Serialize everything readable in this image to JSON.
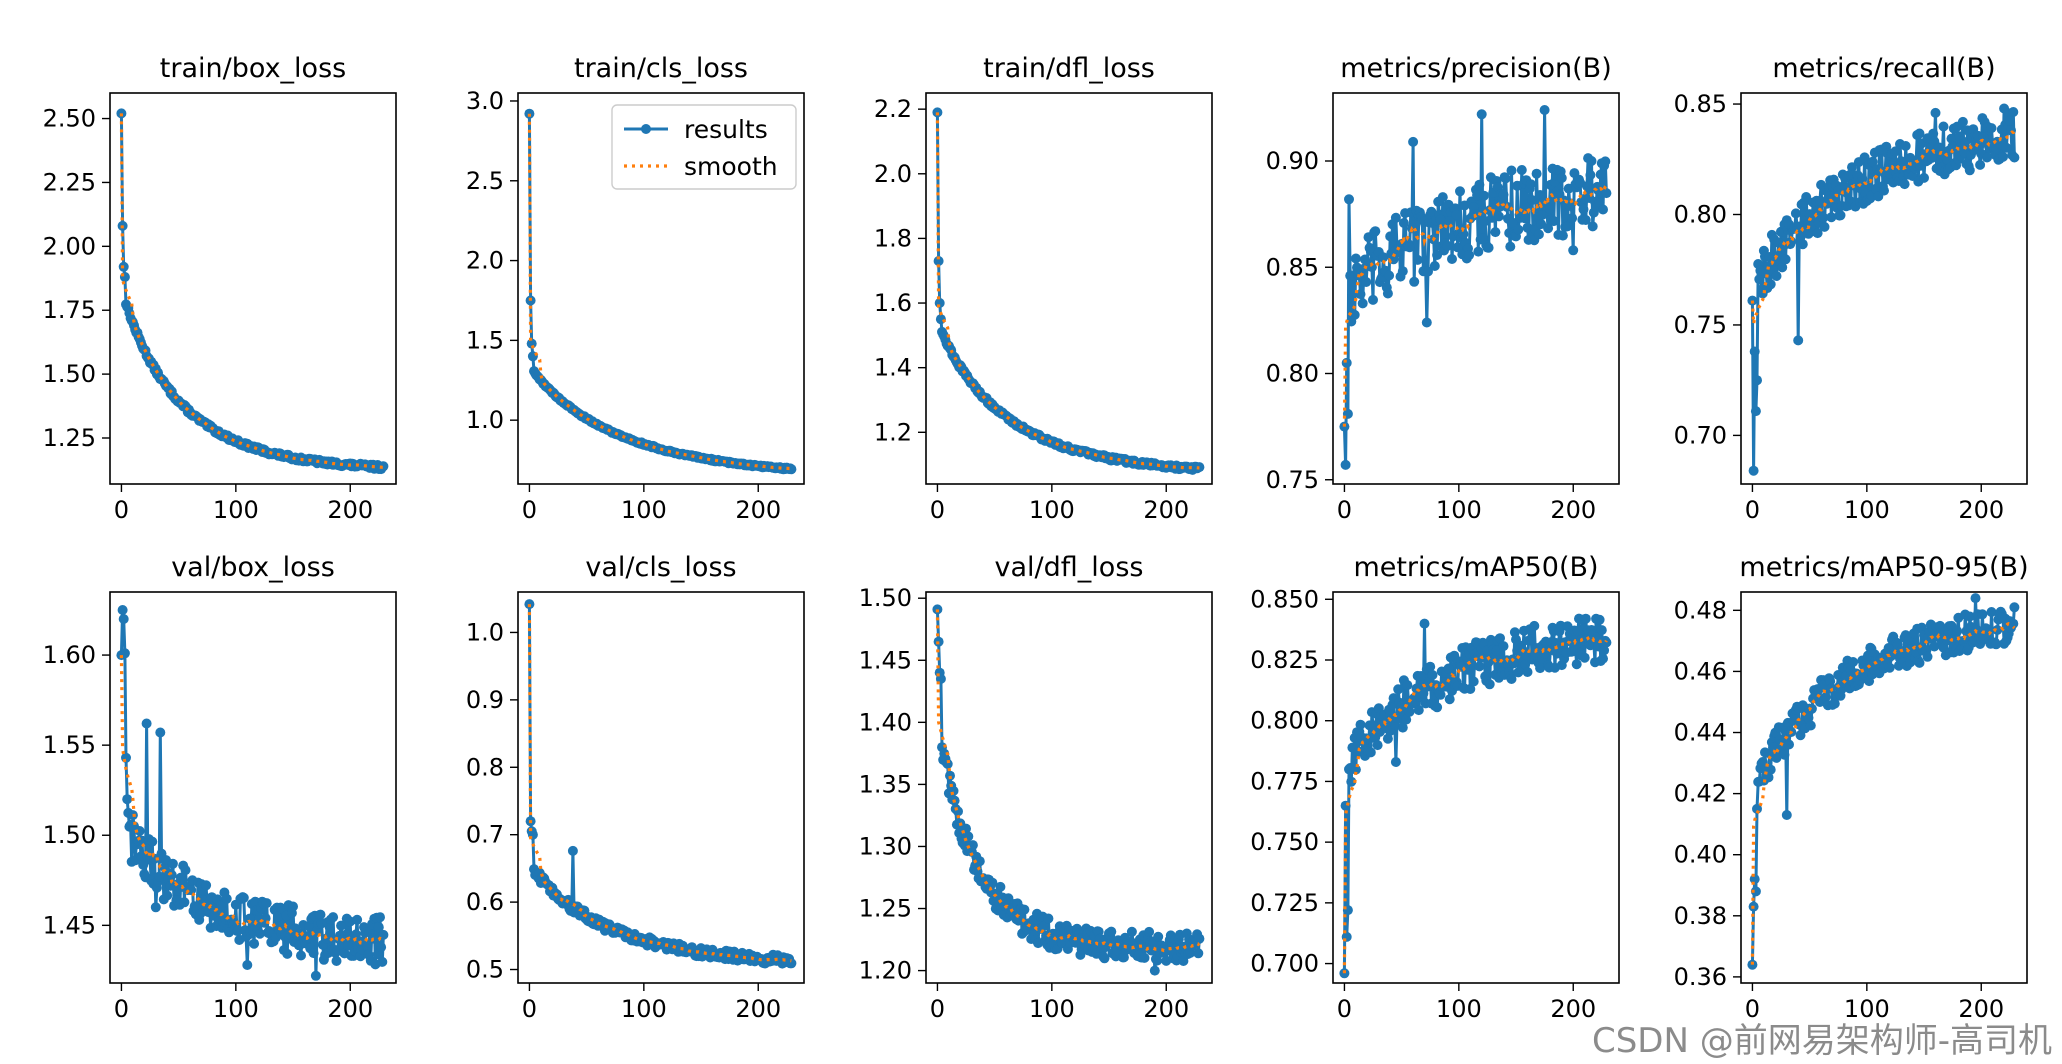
{
  "colors": {
    "results": "#1f77b4",
    "smooth": "#ff7f0e",
    "watermark": "#808080"
  },
  "legend": {
    "results_label": "results",
    "smooth_label": "smooth",
    "placement": "upper-right of train/cls_loss"
  },
  "watermark": "CSDN @前网易架构师-高司机",
  "chart_data": [
    {
      "type": "line",
      "title": "train/box_loss",
      "xlim": [
        -10,
        240
      ],
      "ylim": [
        1.07,
        2.6
      ],
      "xticks": [
        0,
        100,
        200
      ],
      "yticks": [
        1.25,
        1.5,
        1.75,
        2.0,
        2.25,
        2.5
      ],
      "ytick_decimals": 2,
      "model": {
        "start": 2.52,
        "first": [
          2.08,
          1.92,
          1.88
        ],
        "a": 1.85,
        "b": 1.12,
        "k": 0.72,
        "noise": 0.008,
        "spikes": []
      }
    },
    {
      "type": "line",
      "title": "train/cls_loss",
      "xlim": [
        -10,
        240
      ],
      "ylim": [
        0.6,
        3.05
      ],
      "xticks": [
        0,
        100,
        200
      ],
      "yticks": [
        1.0,
        1.5,
        2.0,
        2.5,
        3.0
      ],
      "ytick_decimals": 1,
      "legend": true,
      "model": {
        "start": 2.92,
        "first": [
          1.75,
          1.48,
          1.4
        ],
        "a": 1.35,
        "b": 0.64,
        "k": 0.48,
        "noise": 0.006,
        "spikes": []
      }
    },
    {
      "type": "line",
      "title": "train/dfl_loss",
      "xlim": [
        -10,
        240
      ],
      "ylim": [
        1.04,
        2.25
      ],
      "xticks": [
        0,
        100,
        200
      ],
      "yticks": [
        1.2,
        1.4,
        1.6,
        1.8,
        2.0,
        2.2
      ],
      "ytick_decimals": 1,
      "model": {
        "start": 2.19,
        "first": [
          1.73,
          1.6,
          1.55
        ],
        "a": 1.55,
        "b": 1.07,
        "k": 0.62,
        "noise": 0.006,
        "spikes": []
      }
    },
    {
      "type": "line",
      "title": "metrics/precision(B)",
      "xlim": [
        -10,
        240
      ],
      "ylim": [
        0.748,
        0.932
      ],
      "xticks": [
        0,
        100,
        200
      ],
      "yticks": [
        0.75,
        0.8,
        0.85,
        0.9
      ],
      "ytick_decimals": 2,
      "model": {
        "start": 0.775,
        "first": [
          0.757,
          0.805,
          0.781,
          0.882
        ],
        "a": 0.835,
        "b": 0.895,
        "k": 0.35,
        "noise": 0.018,
        "spikes": [
          [
            60,
            0.909
          ],
          [
            72,
            0.824
          ],
          [
            90,
            0.86
          ],
          [
            120,
            0.922
          ],
          [
            175,
            0.924
          ],
          [
            200,
            0.858
          ]
        ]
      }
    },
    {
      "type": "line",
      "title": "metrics/recall(B)",
      "xlim": [
        -10,
        240
      ],
      "ylim": [
        0.678,
        0.855
      ],
      "xticks": [
        0,
        100,
        200
      ],
      "yticks": [
        0.7,
        0.75,
        0.8,
        0.85
      ],
      "ytick_decimals": 2,
      "model": {
        "start": 0.761,
        "first": [
          0.684,
          0.738,
          0.711,
          0.725
        ],
        "a": 0.765,
        "b": 0.845,
        "k": 0.4,
        "noise": 0.011,
        "spikes": [
          [
            40,
            0.743
          ],
          [
            160,
            0.846
          ],
          [
            190,
            0.82
          ],
          [
            220,
            0.848
          ]
        ]
      }
    },
    {
      "type": "line",
      "title": "val/box_loss",
      "xlim": [
        -10,
        240
      ],
      "ylim": [
        1.418,
        1.635
      ],
      "xticks": [
        0,
        100,
        200
      ],
      "yticks": [
        1.45,
        1.5,
        1.55,
        1.6
      ],
      "ytick_decimals": 2,
      "model": {
        "start": 1.6,
        "first": [
          1.625,
          1.62,
          1.601,
          1.543,
          1.52
        ],
        "a": 1.51,
        "b": 1.437,
        "k": 0.55,
        "noise": 0.014,
        "spikes": [
          [
            22,
            1.562
          ],
          [
            30,
            1.46
          ],
          [
            34,
            1.557
          ],
          [
            110,
            1.428
          ],
          [
            170,
            1.422
          ]
        ]
      }
    },
    {
      "type": "line",
      "title": "val/cls_loss",
      "xlim": [
        -10,
        240
      ],
      "ylim": [
        0.48,
        1.06
      ],
      "xticks": [
        0,
        100,
        200
      ],
      "yticks": [
        0.5,
        0.6,
        0.7,
        0.8,
        0.9,
        1.0
      ],
      "ytick_decimals": 1,
      "model": {
        "start": 1.042,
        "first": [
          0.72,
          0.705,
          0.7
        ],
        "a": 0.66,
        "b": 0.505,
        "k": 0.55,
        "noise": 0.007,
        "spikes": [
          [
            38,
            0.676
          ]
        ]
      }
    },
    {
      "type": "line",
      "title": "val/dfl_loss",
      "xlim": [
        -10,
        240
      ],
      "ylim": [
        1.19,
        1.505
      ],
      "xticks": [
        0,
        100,
        200
      ],
      "yticks": [
        1.2,
        1.25,
        1.3,
        1.35,
        1.4,
        1.45,
        1.5
      ],
      "ytick_decimals": 2,
      "model": {
        "start": 1.491,
        "first": [
          1.465,
          1.44,
          1.435,
          1.38
        ],
        "a": 1.41,
        "b": 1.218,
        "k": 1.1,
        "noise": 0.012,
        "spikes": [
          [
            78,
            1.234
          ],
          [
            190,
            1.2
          ]
        ]
      }
    },
    {
      "type": "line",
      "title": "metrics/mAP50(B)",
      "xlim": [
        -10,
        240
      ],
      "ylim": [
        0.692,
        0.853
      ],
      "xticks": [
        0,
        100,
        200
      ],
      "yticks": [
        0.7,
        0.725,
        0.75,
        0.775,
        0.8,
        0.825,
        0.85
      ],
      "ytick_decimals": 3,
      "model": {
        "start": 0.696,
        "first": [
          0.765,
          0.711,
          0.722,
          0.78
        ],
        "a": 0.78,
        "b": 0.842,
        "k": 0.4,
        "noise": 0.01,
        "spikes": [
          [
            45,
            0.783
          ],
          [
            70,
            0.84
          ]
        ]
      }
    },
    {
      "type": "line",
      "title": "metrics/mAP50-95(B)",
      "xlim": [
        -10,
        240
      ],
      "ylim": [
        0.358,
        0.486
      ],
      "xticks": [
        0,
        100,
        200
      ],
      "yticks": [
        0.36,
        0.38,
        0.4,
        0.42,
        0.44,
        0.46,
        0.48
      ],
      "ytick_decimals": 2,
      "model": {
        "start": 0.364,
        "first": [
          0.383,
          0.392,
          0.388,
          0.415
        ],
        "a": 0.42,
        "b": 0.481,
        "k": 0.45,
        "noise": 0.006,
        "spikes": [
          [
            30,
            0.413
          ],
          [
            195,
            0.484
          ]
        ]
      }
    }
  ]
}
